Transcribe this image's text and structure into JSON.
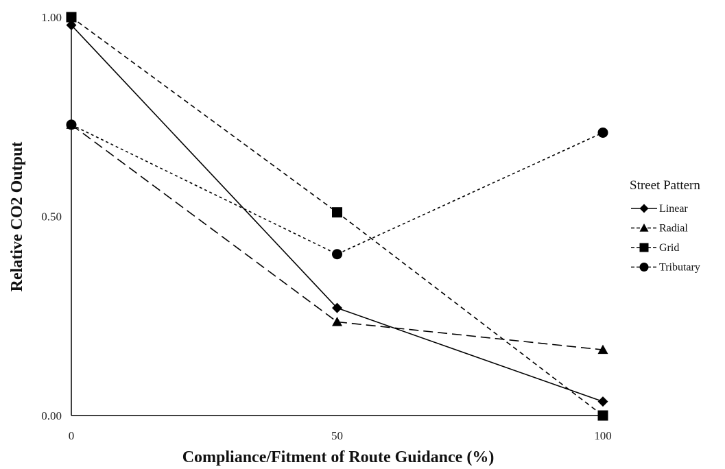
{
  "chart_data": {
    "type": "line",
    "xlabel": "Compliance/Fitment of Route Guidance (%)",
    "ylabel": "Relative CO2 Output",
    "x": [
      0,
      50,
      100
    ],
    "x_tick_labels": [
      "0",
      "50",
      "100"
    ],
    "y_tick_labels": [
      "1.00",
      "0.50",
      "0.00"
    ],
    "y_ticks": [
      1.0,
      0.5,
      0.0
    ],
    "xlim": [
      0,
      100
    ],
    "ylim": [
      0,
      1
    ],
    "grid": false,
    "legend_title": "Street Pattern",
    "legend_position": "right",
    "series": [
      {
        "name": "Linear",
        "marker": "diamond",
        "line": "solid",
        "values": [
          0.98,
          0.27,
          0.035
        ]
      },
      {
        "name": "Radial",
        "marker": "triangle",
        "line": "long-dash",
        "values": [
          0.73,
          0.235,
          0.165
        ]
      },
      {
        "name": "Grid",
        "marker": "square",
        "line": "dash",
        "values": [
          1.0,
          0.51,
          0.0
        ]
      },
      {
        "name": "Tributary",
        "marker": "circle",
        "line": "short-dash",
        "values": [
          0.73,
          0.405,
          0.71
        ]
      }
    ],
    "colors": {
      "line": "#000000",
      "axis": "#000000"
    }
  }
}
